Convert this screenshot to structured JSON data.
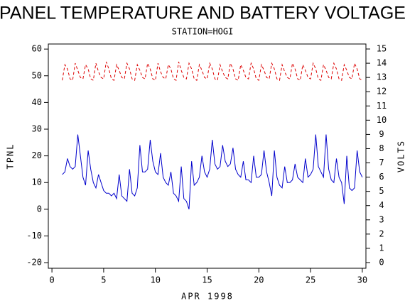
{
  "chart_data": {
    "type": "line",
    "title": "PANEL TEMPERATURE AND BATTERY VOLTAGE",
    "subtitle": "STATION=HOGI",
    "x_label": "APR 1998",
    "y_label": "TPNL",
    "y2_label": "VOLTS",
    "x": [
      1,
      1.25,
      1.5,
      1.75,
      2,
      2.25,
      2.5,
      2.75,
      3,
      3.25,
      3.5,
      3.75,
      4,
      4.25,
      4.5,
      4.75,
      5,
      5.25,
      5.5,
      5.75,
      6,
      6.25,
      6.5,
      6.75,
      7,
      7.25,
      7.5,
      7.75,
      8,
      8.25,
      8.5,
      8.75,
      9,
      9.25,
      9.5,
      9.75,
      10,
      10.25,
      10.5,
      10.75,
      11,
      11.25,
      11.5,
      11.75,
      12,
      12.25,
      12.5,
      12.75,
      13,
      13.25,
      13.5,
      13.75,
      14,
      14.25,
      14.5,
      14.75,
      15,
      15.25,
      15.5,
      15.75,
      16,
      16.25,
      16.5,
      16.75,
      17,
      17.25,
      17.5,
      17.75,
      18,
      18.25,
      18.5,
      18.75,
      19,
      19.25,
      19.5,
      19.75,
      20,
      20.25,
      20.5,
      20.75,
      21,
      21.25,
      21.5,
      21.75,
      22,
      22.25,
      22.5,
      22.75,
      23,
      23.25,
      23.5,
      23.75,
      24,
      24.25,
      24.5,
      24.75,
      25,
      25.25,
      25.5,
      25.75,
      26,
      26.25,
      26.5,
      26.75,
      27,
      27.25,
      27.5,
      27.75,
      28,
      28.25,
      28.5,
      28.75,
      29,
      29.25,
      29.5,
      29.75,
      30
    ],
    "series": [
      {
        "name": "TPNL",
        "color": "#0000cc",
        "axis": "y",
        "dash": false,
        "values": [
          13,
          14,
          19,
          16,
          15,
          16,
          28,
          20,
          12,
          9,
          22,
          15,
          10,
          8,
          13,
          10,
          7,
          6,
          6,
          5,
          6,
          4,
          13,
          5,
          4,
          3,
          15,
          6,
          5,
          8,
          24,
          14,
          14,
          15,
          26,
          18,
          14,
          13,
          21,
          12,
          10,
          9,
          14,
          6,
          5,
          3,
          16,
          4,
          3,
          0,
          18,
          9,
          10,
          12,
          20,
          14,
          12,
          15,
          26,
          17,
          15,
          16,
          24,
          18,
          16,
          17,
          23,
          15,
          13,
          12,
          18,
          11,
          11,
          10,
          20,
          12,
          12,
          13,
          22,
          14,
          10,
          5,
          22,
          12,
          9,
          8,
          16,
          10,
          10,
          11,
          17,
          12,
          11,
          10,
          19,
          12,
          13,
          15,
          28,
          16,
          14,
          12,
          28,
          15,
          11,
          10,
          19,
          12,
          10,
          2,
          20,
          8,
          7,
          8,
          22,
          14,
          12
        ]
      },
      {
        "name": "VOLTS",
        "color": "#dd0000",
        "axis": "y2",
        "dash": true,
        "values": [
          12.8,
          13.9,
          13.6,
          12.9,
          12.8,
          14.0,
          13.5,
          13.0,
          12.9,
          13.9,
          13.6,
          12.9,
          12.8,
          14.0,
          13.4,
          13.0,
          12.9,
          14.1,
          13.6,
          12.9,
          12.8,
          13.9,
          13.5,
          13.0,
          12.9,
          14.0,
          13.6,
          12.9,
          12.8,
          13.9,
          13.5,
          13.0,
          12.9,
          14.0,
          13.6,
          12.9,
          12.8,
          14.0,
          13.4,
          13.0,
          12.9,
          13.9,
          13.6,
          12.9,
          12.8,
          14.1,
          13.5,
          13.0,
          12.9,
          14.0,
          13.6,
          12.9,
          12.8,
          13.9,
          13.5,
          13.0,
          12.9,
          14.0,
          13.6,
          12.9,
          12.8,
          13.9,
          13.4,
          13.0,
          12.9,
          14.0,
          13.6,
          12.9,
          12.8,
          13.9,
          13.5,
          13.0,
          12.9,
          14.0,
          13.6,
          12.9,
          12.8,
          13.9,
          13.5,
          13.0,
          12.9,
          14.0,
          13.6,
          12.9,
          12.8,
          13.9,
          13.4,
          13.0,
          12.9,
          14.0,
          13.6,
          12.9,
          12.8,
          13.9,
          13.5,
          13.0,
          12.9,
          14.0,
          13.6,
          12.9,
          12.8,
          13.9,
          13.5,
          13.0,
          12.9,
          14.0,
          13.6,
          12.9,
          12.8,
          13.9,
          13.5,
          13.0,
          12.9,
          14.0,
          13.6,
          12.9,
          12.8
        ]
      }
    ],
    "xlim": [
      -0.35,
      30.35
    ],
    "xticks": [
      0,
      5,
      10,
      15,
      20,
      25,
      30
    ],
    "ylim": [
      -22.1,
      61.9
    ],
    "yticks": [
      -20,
      -10,
      0,
      10,
      20,
      30,
      40,
      50,
      60
    ],
    "y2lim": [
      -0.4,
      15.35
    ],
    "y2ticks": [
      0,
      1,
      2,
      3,
      4,
      5,
      6,
      7,
      8,
      9,
      10,
      11,
      12,
      13,
      14,
      15
    ],
    "grid": false
  }
}
